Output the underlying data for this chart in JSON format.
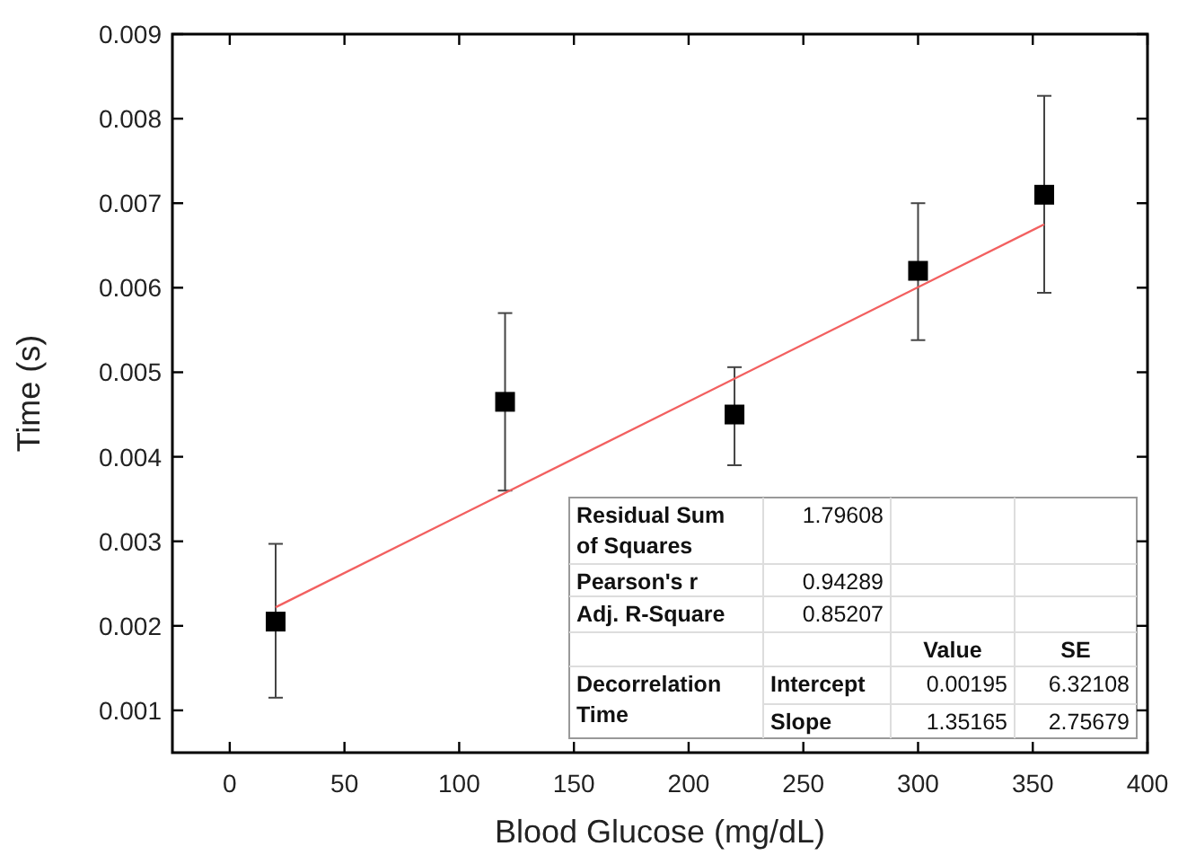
{
  "chart_data": {
    "type": "scatter",
    "xlabel": "Blood Glucose (mg/dL)",
    "ylabel": "Time (s)",
    "xlim": [
      -25,
      400
    ],
    "xticks": [
      0,
      50,
      100,
      150,
      200,
      250,
      300,
      350,
      400
    ],
    "ylim": [
      0.0005,
      0.009
    ],
    "yticks": [
      0.001,
      0.002,
      0.003,
      0.004,
      0.005,
      0.006,
      0.007,
      0.008,
      0.009
    ],
    "marker": "square",
    "grid": false,
    "series": [
      {
        "type": "scatter",
        "color": "#000000",
        "x": [
          20,
          120,
          220,
          300,
          355
        ],
        "values": [
          0.00205,
          0.00465,
          0.0045,
          0.0062,
          0.0071
        ],
        "errors": [
          [
            0.00115,
            0.00297
          ],
          [
            0.0036,
            0.0057
          ],
          [
            0.0039,
            0.00506
          ],
          [
            0.00538,
            0.007
          ],
          [
            0.00594,
            0.00827
          ]
        ]
      },
      {
        "type": "line",
        "color": "#f26060",
        "marker": "none",
        "x": [
          20,
          355
        ],
        "values": [
          0.00222,
          0.00675
        ]
      }
    ],
    "annotations": [
      "Residual Sum of Squares",
      "1.79608",
      "Pearson's r",
      "0.94289",
      "Adj. R-Square",
      "0.85207",
      "Value",
      "SE",
      "Decorrelation Time",
      "Intercept",
      "0.00195",
      "6.32108",
      "Slope",
      "1.35165",
      "2.75679"
    ]
  }
}
